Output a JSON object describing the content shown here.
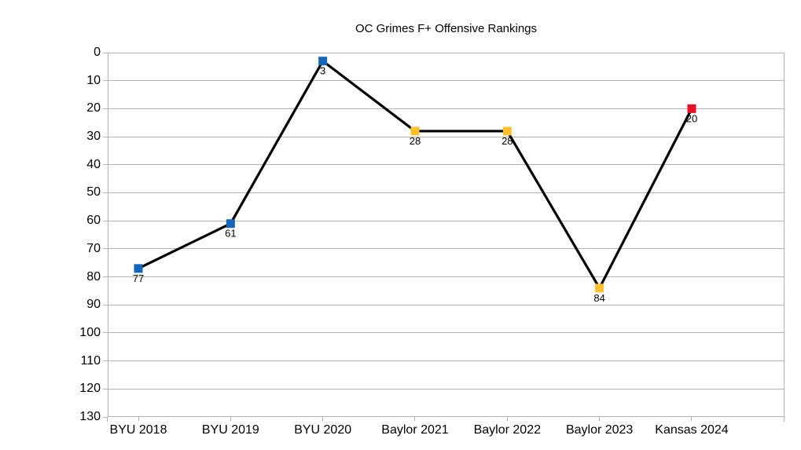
{
  "chart_data": {
    "type": "line",
    "title": "OC Grimes F+ Offensive Rankings",
    "categories": [
      "BYU 2018",
      "BYU 2019",
      "BYU 2020",
      "Baylor 2021",
      "Baylor 2022",
      "Baylor 2023",
      "Kansas 2024"
    ],
    "values": [
      77,
      61,
      3,
      28,
      28,
      84,
      20
    ],
    "data_labels": [
      "77",
      "61",
      "3",
      "28",
      "28",
      "84",
      "20"
    ],
    "point_colors": [
      "#1565b8",
      "#1565b8",
      "#1565b8",
      "#ffc02e",
      "#ffc02e",
      "#ffc02e",
      "#e81123"
    ],
    "line_color": "#000000",
    "marker_shape": "square",
    "xlabel": "",
    "ylabel": "",
    "ylim": [
      0,
      130
    ],
    "y_inverted": true,
    "y_ticks": [
      0,
      10,
      20,
      30,
      40,
      50,
      60,
      70,
      80,
      90,
      100,
      110,
      120,
      130
    ],
    "grid": true,
    "grid_color": "#b3b3b3",
    "legend": "none",
    "background_color": "#ffffff"
  }
}
